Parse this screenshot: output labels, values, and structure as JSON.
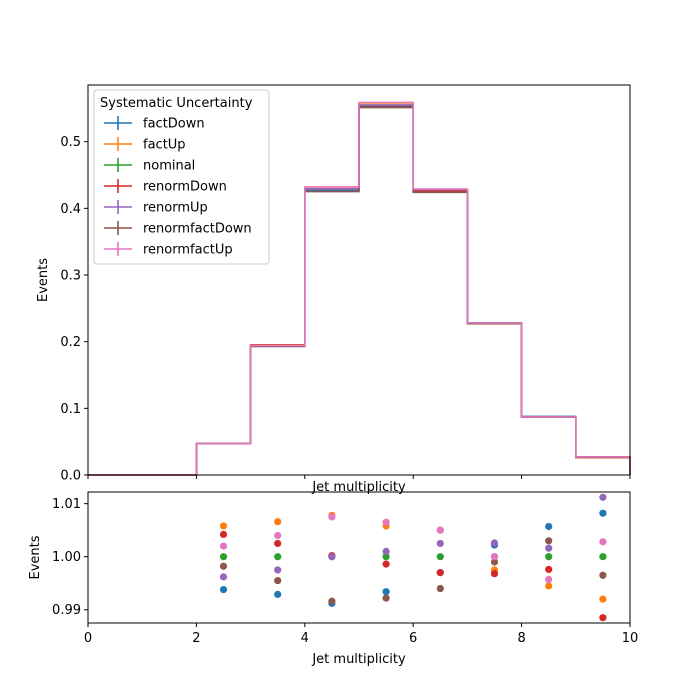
{
  "chart_data": [
    {
      "type": "step",
      "panel": "main",
      "xlabel": "Jet multiplicity",
      "ylabel": "Events",
      "xlim": [
        0,
        10
      ],
      "ylim": [
        0,
        0.585
      ],
      "yticks": [
        0.0,
        0.1,
        0.2,
        0.3,
        0.4,
        0.5
      ],
      "yticklabels": [
        "0.0",
        "0.1",
        "0.2",
        "0.3",
        "0.4",
        "0.5"
      ],
      "xticks": [
        0,
        2,
        4,
        6,
        8,
        10
      ],
      "bin_edges": [
        0,
        1,
        2,
        3,
        4,
        5,
        6,
        7,
        8,
        9,
        10
      ],
      "legend": {
        "title": "Systematic Uncertainty",
        "placement": "top-left"
      },
      "series": [
        {
          "name": "factDown",
          "color": "#1f77b4",
          "values": [
            0,
            0,
            0.047,
            0.193,
            0.427,
            0.553,
            0.426,
            0.228,
            0.088,
            0.027
          ]
        },
        {
          "name": "factUp",
          "color": "#ff7f0e",
          "values": [
            0,
            0,
            0.047,
            0.195,
            0.432,
            0.558,
            0.428,
            0.227,
            0.087,
            0.026
          ]
        },
        {
          "name": "nominal",
          "color": "#2ca02c",
          "values": [
            0,
            0,
            0.047,
            0.194,
            0.429,
            0.555,
            0.427,
            0.228,
            0.087,
            0.027
          ]
        },
        {
          "name": "renormDown",
          "color": "#d62728",
          "values": [
            0,
            0,
            0.047,
            0.195,
            0.429,
            0.554,
            0.426,
            0.227,
            0.087,
            0.026
          ]
        },
        {
          "name": "renormUp",
          "color": "#9467bd",
          "values": [
            0,
            0,
            0.047,
            0.193,
            0.429,
            0.555,
            0.428,
            0.228,
            0.087,
            0.027
          ]
        },
        {
          "name": "renormfactDown",
          "color": "#8c564b",
          "values": [
            0,
            0,
            0.047,
            0.193,
            0.425,
            0.551,
            0.424,
            0.227,
            0.087,
            0.027
          ]
        },
        {
          "name": "renormfactUp",
          "color": "#e377c2",
          "values": [
            0,
            0,
            0.047,
            0.194,
            0.432,
            0.559,
            0.429,
            0.228,
            0.087,
            0.027
          ]
        }
      ]
    },
    {
      "type": "scatter",
      "panel": "ratio",
      "xlabel": "Jet multiplicity",
      "ylabel": "Events",
      "xlim": [
        0,
        10
      ],
      "ylim": [
        0.9875,
        1.0122
      ],
      "yticks": [
        0.99,
        1.0,
        1.01
      ],
      "yticklabels": [
        "0.99",
        "1.00",
        "1.01"
      ],
      "xticks": [
        0,
        2,
        4,
        6,
        8,
        10
      ],
      "xticklabels": [
        "0",
        "2",
        "4",
        "6",
        "8",
        "10"
      ],
      "x": [
        2.5,
        3.5,
        4.5,
        5.5,
        6.5,
        7.5,
        8.5,
        9.5
      ],
      "series": [
        {
          "name": "factDown",
          "color": "#1f77b4",
          "values": [
            0.9938,
            0.9929,
            0.9912,
            0.9934,
            0.997,
            1.0022,
            1.0057,
            1.0082
          ]
        },
        {
          "name": "factUp",
          "color": "#ff7f0e",
          "values": [
            1.0058,
            1.0066,
            1.0078,
            1.0058,
            1.005,
            0.9975,
            0.9945,
            0.992
          ]
        },
        {
          "name": "nominal",
          "color": "#2ca02c",
          "values": [
            1.0,
            1.0,
            1.0,
            1.0,
            1.0,
            1.0,
            1.0,
            1.0
          ]
        },
        {
          "name": "renormDown",
          "color": "#d62728",
          "values": [
            1.0042,
            1.0025,
            1.0002,
            0.9986,
            0.997,
            0.9968,
            0.9976,
            0.9885
          ]
        },
        {
          "name": "renormUp",
          "color": "#9467bd",
          "values": [
            0.9962,
            0.9975,
            1.0,
            1.001,
            1.0025,
            1.0026,
            1.0016,
            1.0112
          ]
        },
        {
          "name": "renormfactDown",
          "color": "#8c564b",
          "values": [
            0.9982,
            0.9955,
            0.9916,
            0.9922,
            0.994,
            0.999,
            1.003,
            0.9965
          ]
        },
        {
          "name": "renormfactUp",
          "color": "#e377c2",
          "values": [
            1.002,
            1.004,
            1.0075,
            1.0065,
            1.005,
            1.0,
            0.9957,
            1.0028
          ]
        }
      ]
    }
  ]
}
